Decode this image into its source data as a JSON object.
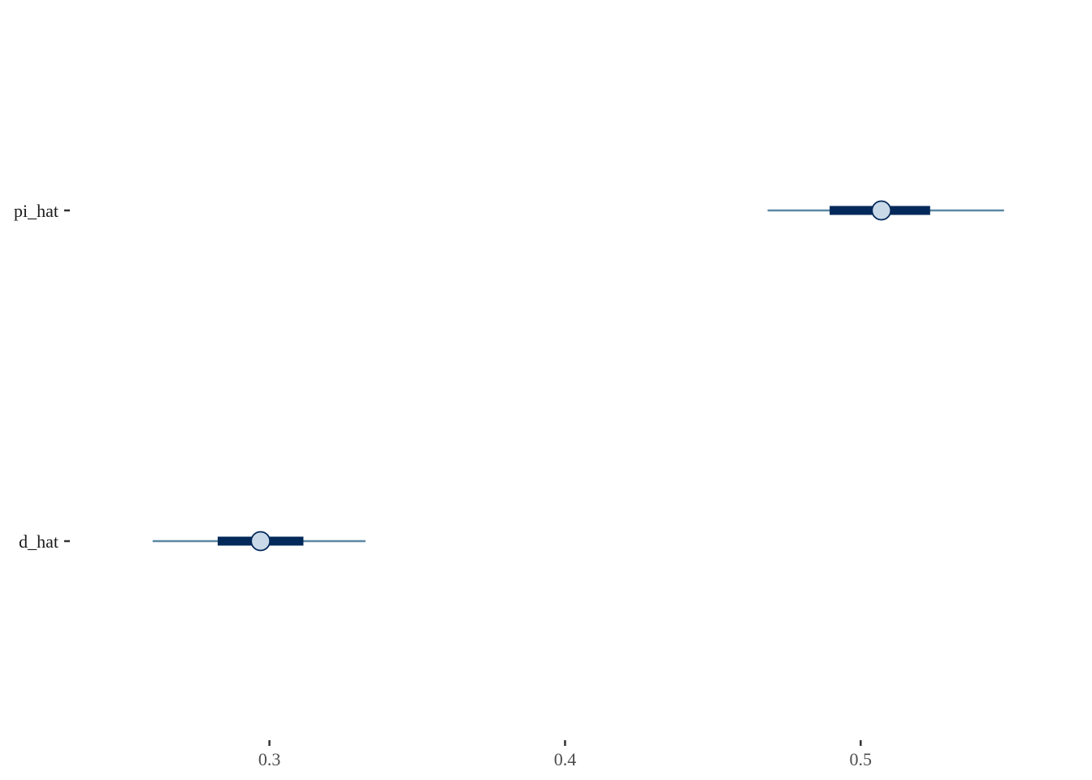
{
  "chart_data": {
    "type": "interval",
    "title": "",
    "xlabel": "",
    "ylabel": "",
    "xlim": [
      0.2325,
      0.5755
    ],
    "x_ticks": [
      0.3,
      0.4,
      0.5
    ],
    "x_tick_labels": [
      "0.3",
      "0.4",
      "0.5"
    ],
    "grid": false,
    "legend": "none",
    "categories": [
      "pi_hat",
      "d_hat"
    ],
    "intervals": [
      {
        "name": "pi_hat",
        "point": 0.507,
        "inner": [
          0.4895,
          0.5235
        ],
        "outer": [
          0.4685,
          0.5485
        ]
      },
      {
        "name": "d_hat",
        "point": 0.297,
        "inner": [
          0.2825,
          0.3115
        ],
        "outer": [
          0.2605,
          0.3325
        ]
      }
    ],
    "colors": {
      "outer_line": "#5b88a4",
      "inner_line": "#03295a",
      "point_fill": "#c9d9e8",
      "point_stroke": "#03295a",
      "axis_text": "#4d4d4d",
      "tick_mark": "#333333"
    }
  }
}
